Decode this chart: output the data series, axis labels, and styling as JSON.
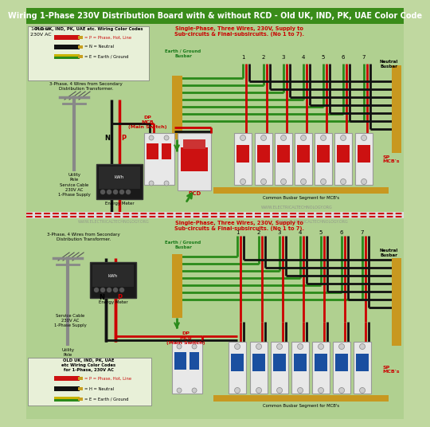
{
  "title": "Wiring 1-Phase 230V Distribution Board with & without RCD - Old UK, IND, PK, UAE Color Code",
  "title_bg": "#3a8c1a",
  "title_color": "#ffffff",
  "title_fontsize": 7.0,
  "bg_color": "#c0d8a0",
  "top_bg": "#b0d090",
  "bot_bg": "#b0d090",
  "divider_color": "#cc0000",
  "website": "WWW.ELECTRICALTECHNOLOGY.ORG",
  "wire_red": "#cc0000",
  "wire_black": "#111111",
  "wire_green": "#2a8a1a",
  "busbar_color": "#c89820",
  "mcb_body": "#e8e8e8",
  "mcb_handle_red": "#cc1111",
  "mcb_handle_blue": "#1a4fa0",
  "legend_bg": "#e8f0d8",
  "sub_nums": [
    "1",
    "2",
    "3",
    "4",
    "5",
    "6",
    "7"
  ]
}
